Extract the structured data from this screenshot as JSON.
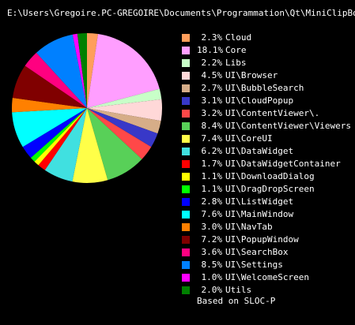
{
  "window": {
    "title": "E:\\Users\\Gregoire.PC-GREGOIRE\\Documents\\Programmation\\Qt\\MiniClipBoard\\Me"
  },
  "chart_data": {
    "type": "pie",
    "title": "E:\\Users\\Gregoire.PC-GREGOIRE\\Documents\\Programmation\\Qt\\MiniClipBoard\\Me",
    "footnote": "Based on SLOC-P",
    "legend_position": "right",
    "slices": [
      {
        "label": "Cloud",
        "pct_text": "2.3%",
        "value": 2.3,
        "color": "#ff9e5b"
      },
      {
        "label": "Core",
        "pct_text": "18.1%",
        "value": 18.1,
        "color": "#ff9eff"
      },
      {
        "label": "Libs",
        "pct_text": "2.2%",
        "value": 2.2,
        "color": "#c8ffc8"
      },
      {
        "label": "UI\\Browser",
        "pct_text": "4.5%",
        "value": 4.5,
        "color": "#ffd8d8"
      },
      {
        "label": "UI\\BubbleSearch",
        "pct_text": "2.7%",
        "value": 2.7,
        "color": "#d6ad88"
      },
      {
        "label": "UI\\CloudPopup",
        "pct_text": "3.1%",
        "value": 3.1,
        "color": "#3838c8"
      },
      {
        "label": "UI\\ContentViewer\\.",
        "pct_text": "3.2%",
        "value": 3.2,
        "color": "#ff4848"
      },
      {
        "label": "UI\\ContentViewer\\Viewers",
        "pct_text": "8.4%",
        "value": 8.4,
        "color": "#58d058"
      },
      {
        "label": "UI\\CoreUI",
        "pct_text": "7.4%",
        "value": 7.4,
        "color": "#ffff48"
      },
      {
        "label": "UI\\DataWidget",
        "pct_text": "6.2%",
        "value": 6.2,
        "color": "#40e0e0"
      },
      {
        "label": "UI\\DataWidgetContainer",
        "pct_text": "1.7%",
        "value": 1.7,
        "color": "#ff0000"
      },
      {
        "label": "UI\\DownloadDialog",
        "pct_text": "1.1%",
        "value": 1.1,
        "color": "#ffff00"
      },
      {
        "label": "UI\\DragDropScreen",
        "pct_text": "1.1%",
        "value": 1.1,
        "color": "#00ff00"
      },
      {
        "label": "UI\\ListWidget",
        "pct_text": "2.8%",
        "value": 2.8,
        "color": "#0000ff"
      },
      {
        "label": "UI\\MainWindow",
        "pct_text": "7.6%",
        "value": 7.6,
        "color": "#00ffff"
      },
      {
        "label": "UI\\NavTab",
        "pct_text": "3.0%",
        "value": 3.0,
        "color": "#ff8000"
      },
      {
        "label": "UI\\PopupWindow",
        "pct_text": "7.2%",
        "value": 7.2,
        "color": "#800000"
      },
      {
        "label": "UI\\SearchBox",
        "pct_text": "3.6%",
        "value": 3.6,
        "color": "#ff0080"
      },
      {
        "label": "UI\\Settings",
        "pct_text": "8.5%",
        "value": 8.5,
        "color": "#0080ff"
      },
      {
        "label": "UI\\WelcomeScreen",
        "pct_text": "1.0%",
        "value": 1.0,
        "color": "#ff00ff"
      },
      {
        "label": "Utils",
        "pct_text": "2.0%",
        "value": 2.0,
        "color": "#008000"
      }
    ]
  }
}
